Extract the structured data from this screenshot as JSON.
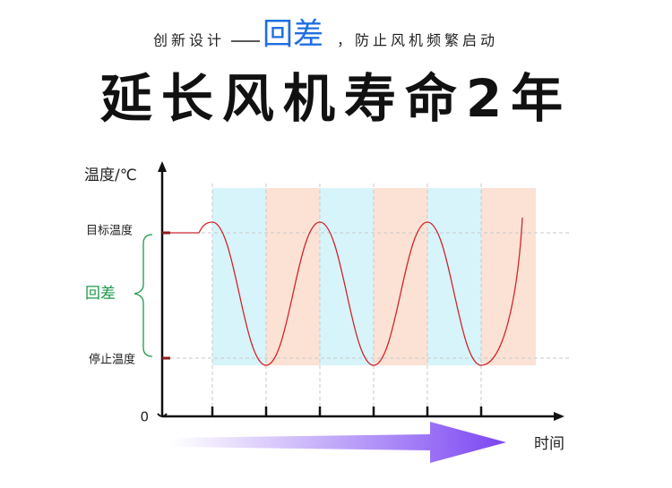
{
  "header": {
    "prefix": "创新设计",
    "dash": "—",
    "highlight": "回差",
    "suffix": "，防止风机频繁启动"
  },
  "title": "延长风机寿命2年",
  "diagram": {
    "y_axis_label": "温度/℃",
    "target_label": "目标温度",
    "hysteresis_label": "回差",
    "stop_label": "停止温度",
    "origin_label": "0",
    "x_axis_label": "时间"
  }
}
